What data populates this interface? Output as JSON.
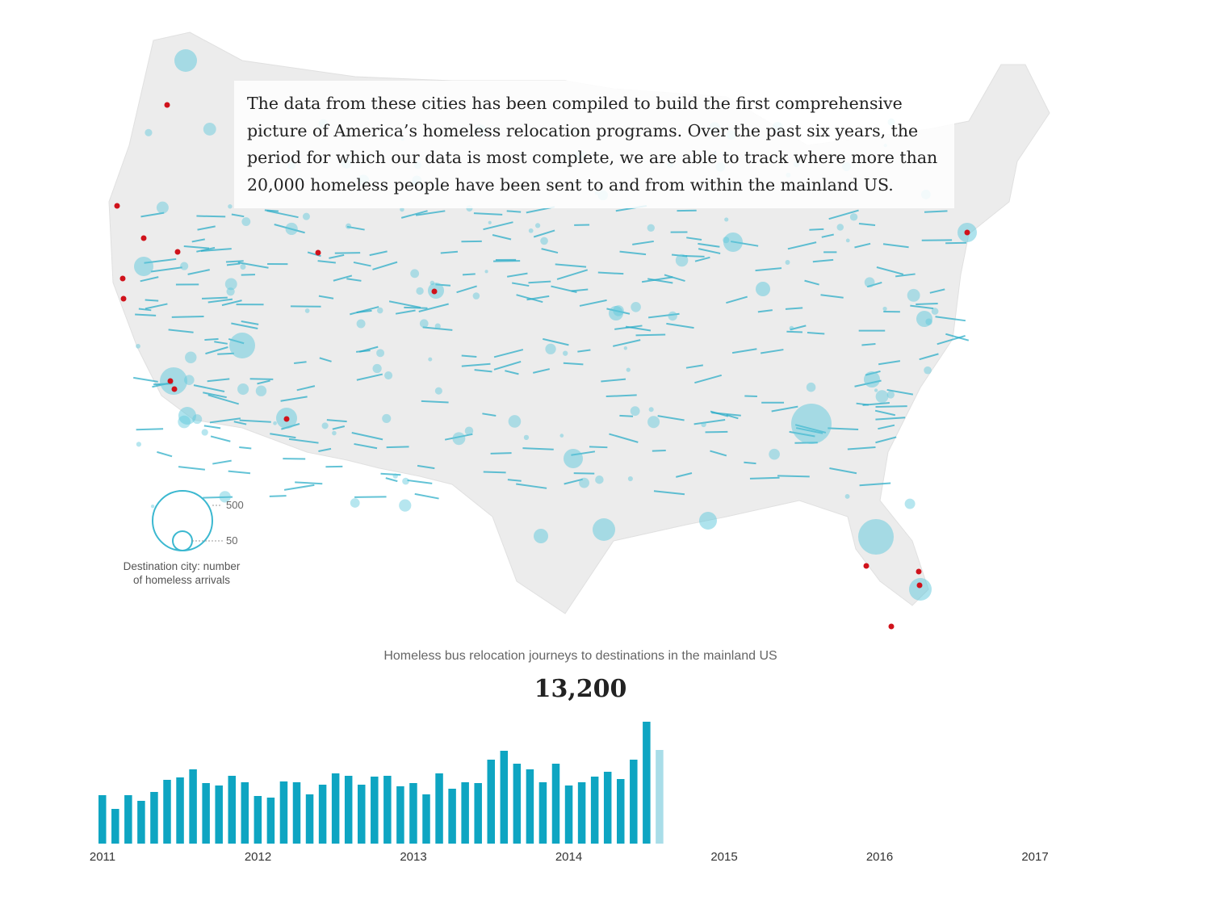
{
  "intro_text": "The data from these cities has been compiled to build the first comprehensive picture of America’s homeless relocation programs. Over the past six years, the period for which our data is most complete, we are able to track where more than 20,000 homeless people have been sent to and from within the mainland US.",
  "legend": {
    "large_value": "500",
    "small_value": "50",
    "caption": "Destination city: number of homeless arrivals"
  },
  "colors": {
    "bar": "#0ea5c2",
    "bar_partial": "#a9dde8",
    "circle": "#5ec8dc",
    "origin": "#d0121b"
  },
  "chart_data": {
    "type": "bar",
    "title": "Homeless bus relocation journeys to destinations in the mainland US",
    "total_label": "13,200",
    "xlabel": "",
    "ylabel": "",
    "x_ticks": [
      "2011",
      "2012",
      "2013",
      "2014",
      "2015",
      "2016",
      "2017"
    ],
    "interval": "month",
    "start": "2011-01",
    "values": [
      60,
      43,
      60,
      53,
      64,
      79,
      82,
      92,
      75,
      72,
      84,
      76,
      59,
      57,
      77,
      76,
      61,
      73,
      87,
      84,
      73,
      83,
      84,
      71,
      75,
      61,
      87,
      68,
      76,
      75,
      104,
      115,
      99,
      92,
      76,
      99,
      72,
      76,
      83,
      89,
      80,
      104,
      151,
      116
    ],
    "last_bar_partial": true,
    "ylim": [
      0,
      160
    ],
    "grid": false
  }
}
